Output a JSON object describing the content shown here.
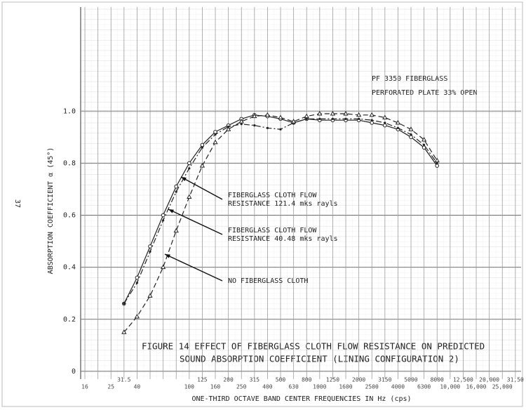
{
  "chart_data": {
    "type": "line",
    "title": "FIGURE 14  EFFECT OF FIBERGLASS CLOTH FLOW RESISTANCE ON PREDICTED",
    "subtitle": "SOUND ABSORPTION COEFFICIENT (LINING CONFIGURATION 2)",
    "notes": [
      "PF 3350 FIBERGLASS",
      "PERFORATED PLATE 33% OPEN"
    ],
    "page_number": "37",
    "x_label": "ONE-THIRD OCTAVE BAND CENTER FREQUENCIES IN Hz (cps)",
    "y_label": "ABSORPTION COEFFICIENT  α (45°)",
    "categories": [
      "16",
      null,
      "25",
      "31.5",
      "40",
      null,
      null,
      null,
      "100",
      "125",
      "160",
      "200",
      "250",
      "315",
      "400",
      "500",
      "630",
      "800",
      "1000",
      "1250",
      "1600",
      "2000",
      "2500",
      "3150",
      "4000",
      "5000",
      "6300",
      "8000",
      "10,000",
      "12,500",
      "16,000",
      "20,000",
      "25,000",
      "31,50"
    ],
    "ylim": [
      -0.03,
      1.4
    ],
    "yticks": [
      0,
      0.2,
      0.4,
      0.6,
      0.8,
      {
        "value": 1,
        "label": "1.0"
      }
    ],
    "grid": true,
    "annotations": [
      [
        "FIBERGLASS CLOTH FLOW",
        "RESISTANCE 121.4 mks rayls"
      ],
      [
        "FIBERGLASS CLOTH FLOW",
        "RESISTANCE 40.48 mks rayls"
      ],
      [
        "NO FIBERGLASS CLOTH"
      ]
    ],
    "series": [
      {
        "color": "#222",
        "dash": "solid",
        "marker": "circle",
        "values": [
          null,
          null,
          null,
          0.26,
          0.36,
          0.48,
          0.6,
          0.71,
          0.8,
          0.87,
          0.92,
          0.945,
          0.97,
          0.985,
          0.98,
          0.97,
          0.955,
          0.97,
          0.965,
          0.965,
          0.965,
          0.965,
          0.955,
          0.945,
          0.93,
          0.9,
          0.86,
          0.79,
          null,
          null,
          null,
          null,
          null,
          null
        ]
      },
      {
        "color": "#222",
        "dash": "dashdot",
        "marker": "dot",
        "values": [
          null,
          null,
          null,
          0.26,
          0.34,
          0.46,
          0.58,
          0.69,
          0.78,
          0.86,
          0.91,
          0.94,
          0.95,
          0.945,
          0.935,
          0.93,
          0.955,
          0.97,
          0.97,
          0.97,
          0.97,
          0.97,
          0.965,
          0.955,
          0.935,
          0.91,
          0.87,
          0.8,
          null,
          null,
          null,
          null,
          null,
          null
        ]
      },
      {
        "color": "#222",
        "dash": "dashed",
        "marker": "triangle",
        "values": [
          null,
          null,
          null,
          0.15,
          0.21,
          0.29,
          0.4,
          0.54,
          0.67,
          0.79,
          0.88,
          0.93,
          0.96,
          0.98,
          0.985,
          0.975,
          0.96,
          0.98,
          0.99,
          0.99,
          0.99,
          0.985,
          0.985,
          0.975,
          0.955,
          0.93,
          0.89,
          0.81,
          null,
          null,
          null,
          null,
          null,
          null
        ]
      }
    ]
  }
}
